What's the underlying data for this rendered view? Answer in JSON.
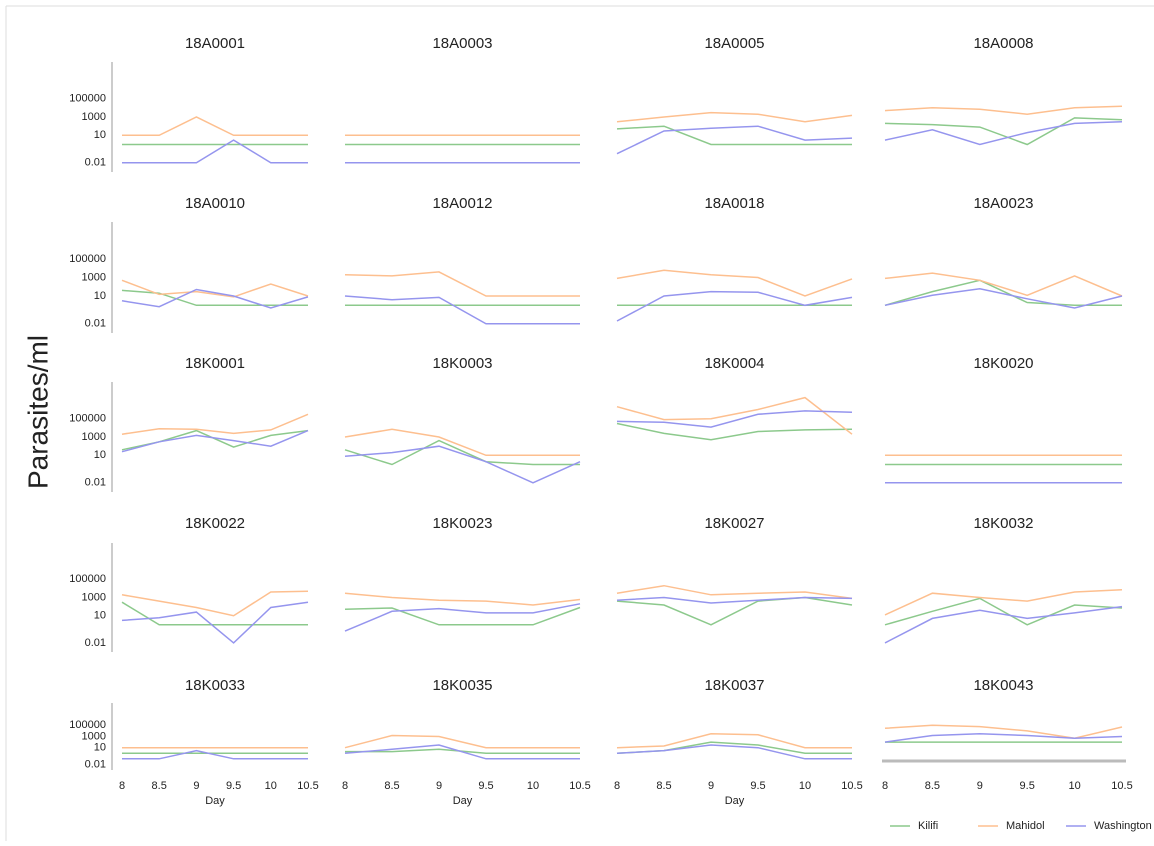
{
  "chart_data": [
    {
      "type": "line",
      "title": "18A0001",
      "ylabel": "Parasites/ml",
      "x": [
        8,
        8.5,
        9,
        9.5,
        10,
        10.5
      ],
      "xlim": [
        8,
        10.5
      ],
      "ylim": [
        0.001,
        1000000000
      ],
      "log_y": true,
      "yticks": [
        0.01,
        10,
        1000,
        100000
      ],
      "series": [
        {
          "name": "Kilifi",
          "color": "#8cc98c",
          "values": [
            1,
            1,
            1,
            1,
            1,
            1
          ]
        },
        {
          "name": "Mahidol",
          "color": "#fdbf8f",
          "values": [
            10,
            10,
            1000,
            10,
            10,
            10
          ]
        },
        {
          "name": "Washington",
          "color": "#9595ee",
          "values": [
            0.01,
            0.01,
            0.01,
            3,
            0.01,
            0.01
          ]
        }
      ]
    },
    {
      "type": "line",
      "title": "18A0003",
      "x": [
        8,
        8.5,
        9,
        9.5,
        10,
        10.5
      ],
      "xlim": [
        8,
        10.5
      ],
      "ylim": [
        0.001,
        1000000000
      ],
      "log_y": true,
      "series": [
        {
          "name": "Kilifi",
          "color": "#8cc98c",
          "values": [
            1,
            1,
            1,
            1,
            1,
            1
          ]
        },
        {
          "name": "Mahidol",
          "color": "#fdbf8f",
          "values": [
            10,
            10,
            10,
            10,
            10,
            10
          ]
        },
        {
          "name": "Washington",
          "color": "#9595ee",
          "values": [
            0.01,
            0.01,
            0.01,
            0.01,
            0.01,
            0.01
          ]
        }
      ]
    },
    {
      "type": "line",
      "title": "18A0005",
      "x": [
        8,
        8.5,
        9,
        9.5,
        10,
        10.5
      ],
      "xlim": [
        8,
        10.5
      ],
      "ylim": [
        0.001,
        1000000000
      ],
      "log_y": true,
      "series": [
        {
          "name": "Kilifi",
          "color": "#8cc98c",
          "values": [
            50,
            100,
            1,
            1,
            1,
            1
          ]
        },
        {
          "name": "Mahidol",
          "color": "#fdbf8f",
          "values": [
            300,
            1000,
            3000,
            2000,
            300,
            1500
          ]
        },
        {
          "name": "Washington",
          "color": "#9595ee",
          "values": [
            0.1,
            30,
            60,
            100,
            3,
            5
          ]
        }
      ]
    },
    {
      "type": "line",
      "title": "18A0008",
      "x": [
        8,
        8.5,
        9,
        9.5,
        10,
        10.5
      ],
      "xlim": [
        8,
        10.5
      ],
      "ylim": [
        0.001,
        1000000000
      ],
      "log_y": true,
      "series": [
        {
          "name": "Kilifi",
          "color": "#8cc98c",
          "values": [
            200,
            150,
            80,
            1,
            800,
            500
          ]
        },
        {
          "name": "Mahidol",
          "color": "#fdbf8f",
          "values": [
            5000,
            10000,
            7000,
            2000,
            10000,
            15000
          ]
        },
        {
          "name": "Washington",
          "color": "#9595ee",
          "values": [
            3,
            40,
            1,
            20,
            200,
            300
          ]
        }
      ]
    },
    {
      "type": "line",
      "title": "18A0010",
      "x": [
        8,
        8.5,
        9,
        9.5,
        10,
        10.5
      ],
      "xlim": [
        8,
        10.5
      ],
      "ylim": [
        0.001,
        1000000000
      ],
      "log_y": true,
      "yticks": [
        0.01,
        10,
        1000,
        100000
      ],
      "series": [
        {
          "name": "Kilifi",
          "color": "#8cc98c",
          "values": [
            40,
            20,
            1,
            1,
            1,
            1
          ]
        },
        {
          "name": "Mahidol",
          "color": "#fdbf8f",
          "values": [
            500,
            15,
            30,
            8,
            200,
            10
          ]
        },
        {
          "name": "Washington",
          "color": "#9595ee",
          "values": [
            3,
            0.7,
            50,
            10,
            0.5,
            8
          ]
        }
      ]
    },
    {
      "type": "line",
      "title": "18A0012",
      "x": [
        8,
        8.5,
        9,
        9.5,
        10,
        10.5
      ],
      "xlim": [
        8,
        10.5
      ],
      "ylim": [
        0.001,
        1000000000
      ],
      "log_y": true,
      "series": [
        {
          "name": "Kilifi",
          "color": "#8cc98c",
          "values": [
            1,
            1,
            1,
            1,
            1,
            1
          ]
        },
        {
          "name": "Mahidol",
          "color": "#fdbf8f",
          "values": [
            2000,
            1500,
            4000,
            10,
            10,
            10
          ]
        },
        {
          "name": "Washington",
          "color": "#9595ee",
          "values": [
            10,
            4,
            7,
            0.01,
            0.01,
            0.01
          ]
        }
      ]
    },
    {
      "type": "line",
      "title": "18A0018",
      "x": [
        8,
        8.5,
        9,
        9.5,
        10,
        10.5
      ],
      "xlim": [
        8,
        10.5
      ],
      "ylim": [
        0.001,
        1000000000
      ],
      "log_y": true,
      "series": [
        {
          "name": "Kilifi",
          "color": "#8cc98c",
          "values": [
            1,
            1,
            1,
            1,
            1,
            1
          ]
        },
        {
          "name": "Mahidol",
          "color": "#fdbf8f",
          "values": [
            800,
            6000,
            2000,
            1000,
            10,
            700
          ]
        },
        {
          "name": "Washington",
          "color": "#9595ee",
          "values": [
            0.02,
            10,
            30,
            25,
            1,
            7
          ]
        }
      ]
    },
    {
      "type": "line",
      "title": "18A0023",
      "x": [
        8,
        8.5,
        9,
        9.5,
        10,
        10.5
      ],
      "xlim": [
        8,
        10.5
      ],
      "ylim": [
        0.001,
        1000000000
      ],
      "log_y": true,
      "series": [
        {
          "name": "Kilifi",
          "color": "#8cc98c",
          "values": [
            1,
            30,
            500,
            2,
            1,
            1
          ]
        },
        {
          "name": "Mahidol",
          "color": "#fdbf8f",
          "values": [
            800,
            3000,
            500,
            12,
            1500,
            10
          ]
        },
        {
          "name": "Washington",
          "color": "#9595ee",
          "values": [
            1,
            12,
            60,
            5,
            0.5,
            10
          ]
        }
      ]
    },
    {
      "type": "line",
      "title": "18K0001",
      "x": [
        8,
        8.5,
        9,
        9.5,
        10,
        10.5
      ],
      "xlim": [
        8,
        10.5
      ],
      "ylim": [
        0.001,
        1000000000
      ],
      "log_y": true,
      "yticks": [
        0.01,
        10,
        1000,
        100000
      ],
      "series": [
        {
          "name": "Kilifi",
          "color": "#8cc98c",
          "values": [
            40,
            300,
            5000,
            80,
            1500,
            5000
          ]
        },
        {
          "name": "Mahidol",
          "color": "#fdbf8f",
          "values": [
            2000,
            8000,
            7000,
            2500,
            6000,
            300000
          ]
        },
        {
          "name": "Washington",
          "color": "#9595ee",
          "values": [
            25,
            300,
            1500,
            400,
            100,
            5000
          ]
        }
      ]
    },
    {
      "type": "line",
      "title": "18K0003",
      "x": [
        8,
        8.5,
        9,
        9.5,
        10,
        10.5
      ],
      "xlim": [
        8,
        10.5
      ],
      "ylim": [
        0.001,
        1000000000
      ],
      "log_y": true,
      "series": [
        {
          "name": "Kilifi",
          "color": "#8cc98c",
          "values": [
            40,
            1,
            400,
            2,
            1,
            1
          ]
        },
        {
          "name": "Mahidol",
          "color": "#fdbf8f",
          "values": [
            1000,
            7000,
            1000,
            10,
            10,
            10
          ]
        },
        {
          "name": "Washington",
          "color": "#9595ee",
          "values": [
            8,
            20,
            100,
            2,
            0.01,
            2
          ]
        }
      ]
    },
    {
      "type": "line",
      "title": "18K0004",
      "x": [
        8,
        8.5,
        9,
        9.5,
        10,
        10.5
      ],
      "xlim": [
        8,
        10.5
      ],
      "ylim": [
        0.001,
        1000000000
      ],
      "log_y": true,
      "series": [
        {
          "name": "Kilifi",
          "color": "#8cc98c",
          "values": [
            30000,
            2500,
            500,
            4000,
            6000,
            7000
          ]
        },
        {
          "name": "Mahidol",
          "color": "#fdbf8f",
          "values": [
            2000000,
            80000,
            100000,
            1000000,
            20000000,
            2000
          ]
        },
        {
          "name": "Washington",
          "color": "#9595ee",
          "values": [
            50000,
            40000,
            12000,
            300000,
            700000,
            500000
          ]
        }
      ]
    },
    {
      "type": "line",
      "title": "18K0020",
      "x": [
        8,
        8.5,
        9,
        9.5,
        10,
        10.5
      ],
      "xlim": [
        8,
        10.5
      ],
      "ylim": [
        0.001,
        1000000000
      ],
      "log_y": true,
      "series": [
        {
          "name": "Kilifi",
          "color": "#8cc98c",
          "values": [
            1,
            1,
            1,
            1,
            1,
            1
          ]
        },
        {
          "name": "Mahidol",
          "color": "#fdbf8f",
          "values": [
            10,
            10,
            10,
            10,
            10,
            10
          ]
        },
        {
          "name": "Washington",
          "color": "#9595ee",
          "values": [
            0.01,
            0.01,
            0.01,
            0.01,
            0.01,
            0.01
          ]
        }
      ]
    },
    {
      "type": "line",
      "title": "18K0022",
      "x": [
        8,
        8.5,
        9,
        9.5,
        10,
        10.5
      ],
      "xlim": [
        8,
        10.5
      ],
      "ylim": [
        0.001,
        1000000000
      ],
      "log_y": true,
      "yticks": [
        0.01,
        10,
        1000,
        100000
      ],
      "series": [
        {
          "name": "Kilifi",
          "color": "#8cc98c",
          "values": [
            300,
            1,
            1,
            1,
            1,
            1
          ]
        },
        {
          "name": "Mahidol",
          "color": "#fdbf8f",
          "values": [
            2000,
            400,
            80,
            10,
            4000,
            5000
          ]
        },
        {
          "name": "Washington",
          "color": "#9595ee",
          "values": [
            3,
            6,
            25,
            0.01,
            80,
            300
          ]
        }
      ]
    },
    {
      "type": "line",
      "title": "18K0023",
      "x": [
        8,
        8.5,
        9,
        9.5,
        10,
        10.5
      ],
      "xlim": [
        8,
        10.5
      ],
      "ylim": [
        0.001,
        1000000000
      ],
      "log_y": true,
      "series": [
        {
          "name": "Kilifi",
          "color": "#8cc98c",
          "values": [
            50,
            70,
            1,
            1,
            1,
            80
          ]
        },
        {
          "name": "Mahidol",
          "color": "#fdbf8f",
          "values": [
            3000,
            1000,
            500,
            400,
            150,
            600
          ]
        },
        {
          "name": "Washington",
          "color": "#9595ee",
          "values": [
            0.2,
            30,
            60,
            20,
            20,
            200
          ]
        }
      ]
    },
    {
      "type": "line",
      "title": "18K0027",
      "x": [
        8,
        8.5,
        9,
        9.5,
        10,
        10.5
      ],
      "xlim": [
        8,
        10.5
      ],
      "ylim": [
        0.001,
        1000000000
      ],
      "log_y": true,
      "series": [
        {
          "name": "Kilifi",
          "color": "#8cc98c",
          "values": [
            400,
            150,
            1,
            400,
            1000,
            150
          ]
        },
        {
          "name": "Mahidol",
          "color": "#fdbf8f",
          "values": [
            3000,
            20000,
            2000,
            3000,
            4000,
            800
          ]
        },
        {
          "name": "Washington",
          "color": "#9595ee",
          "values": [
            500,
            1000,
            250,
            500,
            1000,
            800
          ]
        }
      ]
    },
    {
      "type": "line",
      "title": "18K0032",
      "x": [
        8,
        8.5,
        9,
        9.5,
        10,
        10.5
      ],
      "xlim": [
        8,
        10.5
      ],
      "ylim": [
        0.001,
        1000000000
      ],
      "log_y": true,
      "series": [
        {
          "name": "Kilifi",
          "color": "#8cc98c",
          "values": [
            1,
            30,
            800,
            1,
            150,
            70
          ]
        },
        {
          "name": "Mahidol",
          "color": "#fdbf8f",
          "values": [
            12,
            3000,
            1000,
            400,
            4000,
            7000
          ]
        },
        {
          "name": "Washington",
          "color": "#9595ee",
          "values": [
            0.01,
            5,
            40,
            5,
            20,
            100
          ]
        }
      ]
    },
    {
      "type": "line",
      "title": "18K0033",
      "xlabel": "Day",
      "x": [
        8,
        8.5,
        9,
        9.5,
        10,
        10.5
      ],
      "xlim": [
        8,
        10.5
      ],
      "xticks": [
        8,
        8.5,
        9,
        9.5,
        10,
        10.5
      ],
      "ylim": [
        0.001,
        1000000000
      ],
      "log_y": true,
      "yticks": [
        0.01,
        10,
        1000,
        100000
      ],
      "series": [
        {
          "name": "Kilifi",
          "color": "#8cc98c",
          "values": [
            1,
            1,
            1,
            1,
            1,
            1
          ]
        },
        {
          "name": "Mahidol",
          "color": "#fdbf8f",
          "values": [
            10,
            10,
            10,
            10,
            10,
            10
          ]
        },
        {
          "name": "Washington",
          "color": "#9595ee",
          "values": [
            0.1,
            0.1,
            3,
            0.1,
            0.1,
            0.1
          ]
        }
      ]
    },
    {
      "type": "line",
      "title": "18K0035",
      "xlabel": "Day",
      "x": [
        8,
        8.5,
        9,
        9.5,
        10,
        10.5
      ],
      "xlim": [
        8,
        10.5
      ],
      "xticks": [
        8,
        8.5,
        9,
        9.5,
        10,
        10.5
      ],
      "ylim": [
        0.001,
        1000000000
      ],
      "log_y": true,
      "series": [
        {
          "name": "Kilifi",
          "color": "#8cc98c",
          "values": [
            2,
            2,
            5,
            1,
            1,
            1
          ]
        },
        {
          "name": "Mahidol",
          "color": "#fdbf8f",
          "values": [
            10,
            1500,
            1000,
            10,
            10,
            10
          ]
        },
        {
          "name": "Washington",
          "color": "#9595ee",
          "values": [
            1,
            5,
            30,
            0.1,
            0.1,
            0.1
          ]
        }
      ]
    },
    {
      "type": "line",
      "title": "18K0037",
      "xlabel": "Day",
      "x": [
        8,
        8.5,
        9,
        9.5,
        10,
        10.5
      ],
      "xlim": [
        8,
        10.5
      ],
      "xticks": [
        8,
        8.5,
        9,
        9.5,
        10,
        10.5
      ],
      "ylim": [
        0.001,
        1000000000
      ],
      "log_y": true,
      "series": [
        {
          "name": "Kilifi",
          "color": "#8cc98c",
          "values": [
            1,
            3,
            100,
            30,
            1,
            1
          ]
        },
        {
          "name": "Mahidol",
          "color": "#fdbf8f",
          "values": [
            10,
            20,
            3000,
            2000,
            10,
            10
          ]
        },
        {
          "name": "Washington",
          "color": "#9595ee",
          "values": [
            1,
            3,
            30,
            10,
            0.1,
            0.1
          ]
        }
      ]
    },
    {
      "type": "line",
      "title": "18K0043",
      "legend": "below",
      "x": [
        8,
        8.5,
        9,
        9.5,
        10,
        10.5
      ],
      "xlim": [
        8,
        10.5
      ],
      "xticks": [
        8,
        8.5,
        9,
        9.5,
        10,
        10.5
      ],
      "ylim": [
        0.001,
        1000000000
      ],
      "log_y": true,
      "series": [
        {
          "name": "Kilifi",
          "color": "#8cc98c",
          "values": [
            100,
            100,
            100,
            100,
            100,
            100
          ]
        },
        {
          "name": "Mahidol",
          "color": "#fdbf8f",
          "values": [
            30000,
            100000,
            60000,
            10000,
            500,
            50000
          ]
        },
        {
          "name": "Washington",
          "color": "#9595ee",
          "values": [
            100,
            1500,
            3000,
            1500,
            500,
            1000
          ]
        }
      ]
    }
  ]
}
